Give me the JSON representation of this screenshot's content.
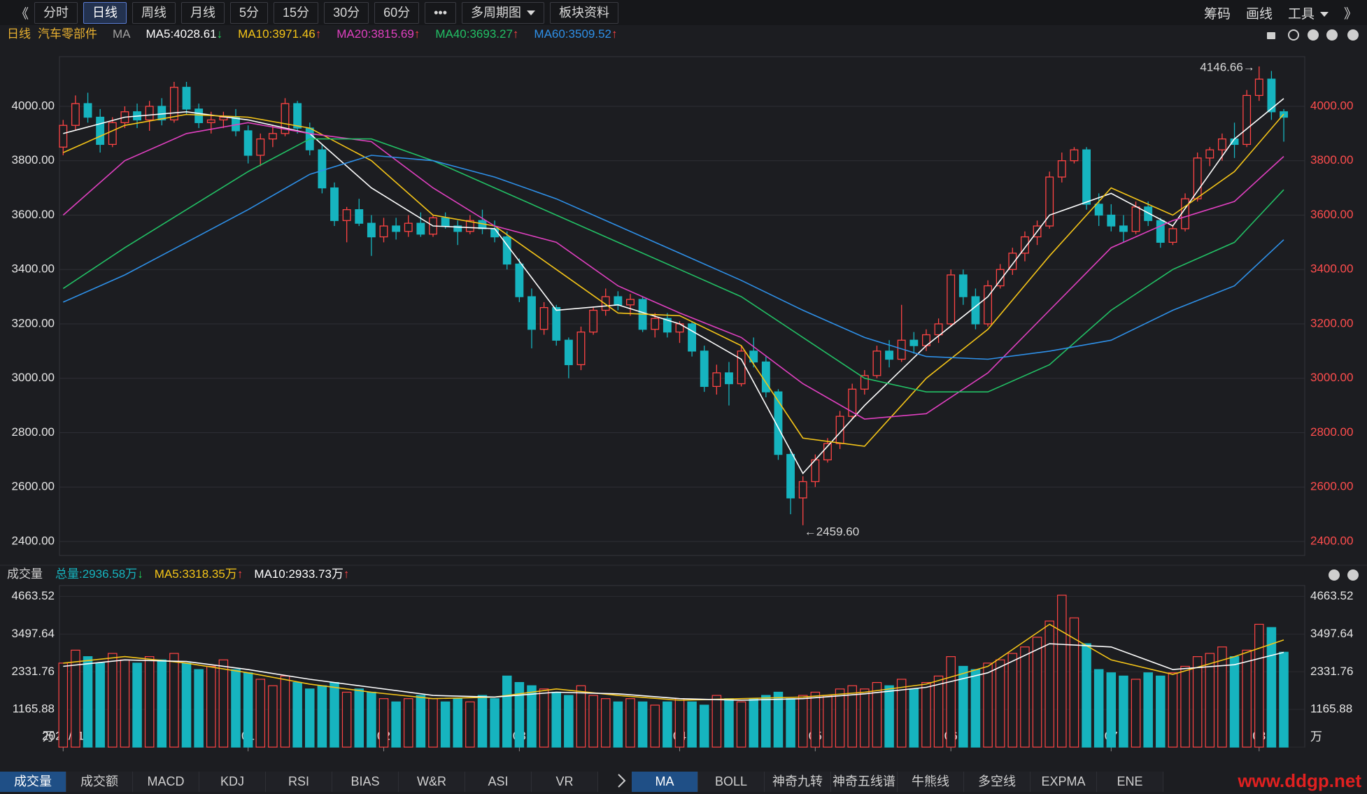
{
  "toolbar": {
    "left": [
      "《",
      "分时",
      "日线",
      "周线",
      "月线",
      "5分",
      "15分",
      "30分",
      "60分",
      "•••",
      {
        "text": "多周期图",
        "dropdown": true
      },
      "板块资料"
    ],
    "active": 2,
    "right": [
      "筹码",
      "画线",
      {
        "text": "工具",
        "dropdown": true
      },
      "》"
    ]
  },
  "header": {
    "period": "日线",
    "name": "汽车零部件",
    "indicator": "MA"
  },
  "chart_data": [
    {
      "type": "candlestick",
      "up_color": "#ff4444",
      "down_color": "#16b4bf",
      "grid": true,
      "ylim": [
        2348.5,
        4182.6
      ],
      "yticks": [
        {
          "value": 2400,
          "label": "2400.00"
        },
        {
          "value": 2600,
          "label": "2600.00"
        },
        {
          "value": 2800,
          "label": "2800.00"
        },
        {
          "value": 3000,
          "label": "3000.00"
        },
        {
          "value": 3200,
          "label": "3200.00"
        },
        {
          "value": 3400,
          "label": "3400.00"
        },
        {
          "value": 3600,
          "label": "3600.00"
        },
        {
          "value": 3800,
          "label": "3800.00"
        },
        {
          "value": 4000,
          "label": "4000.00"
        }
      ],
      "xlim": [
        -0.3,
        100.7
      ],
      "xticks": [
        {
          "value": 0,
          "label": "2021/11"
        },
        {
          "value": 15,
          "label": "01"
        },
        {
          "value": 26,
          "label": "02"
        },
        {
          "value": 37,
          "label": "03"
        },
        {
          "value": 50,
          "label": "04"
        },
        {
          "value": 61,
          "label": "05"
        },
        {
          "value": 72,
          "label": "06"
        },
        {
          "value": 85,
          "label": "07"
        },
        {
          "value": 97,
          "label": "08"
        }
      ],
      "candles": [
        [
          3850,
          3950,
          3820,
          3930
        ],
        [
          3930,
          4040,
          3910,
          4010
        ],
        [
          4010,
          4050,
          3940,
          3960
        ],
        [
          3960,
          3990,
          3830,
          3860
        ],
        [
          3860,
          3960,
          3850,
          3940
        ],
        [
          3940,
          4000,
          3920,
          3980
        ],
        [
          3980,
          4010,
          3920,
          3950
        ],
        [
          3950,
          4020,
          3910,
          4000
        ],
        [
          4000,
          4030,
          3930,
          3950
        ],
        [
          3950,
          4090,
          3940,
          4070
        ],
        [
          4070,
          4090,
          3970,
          3990
        ],
        [
          3990,
          4010,
          3920,
          3940
        ],
        [
          3940,
          3980,
          3900,
          3950
        ],
        [
          3950,
          3980,
          3920,
          3960
        ],
        [
          3960,
          3990,
          3890,
          3910
        ],
        [
          3910,
          3930,
          3790,
          3820
        ],
        [
          3820,
          3900,
          3780,
          3880
        ],
        [
          3880,
          3930,
          3850,
          3900
        ],
        [
          3900,
          4030,
          3890,
          4010
        ],
        [
          4010,
          4020,
          3900,
          3920
        ],
        [
          3920,
          3940,
          3820,
          3840
        ],
        [
          3840,
          3860,
          3680,
          3700
        ],
        [
          3700,
          3720,
          3560,
          3580
        ],
        [
          3580,
          3630,
          3500,
          3620
        ],
        [
          3620,
          3660,
          3560,
          3570
        ],
        [
          3570,
          3600,
          3450,
          3520
        ],
        [
          3520,
          3590,
          3500,
          3560
        ],
        [
          3560,
          3590,
          3510,
          3540
        ],
        [
          3540,
          3600,
          3520,
          3570
        ],
        [
          3570,
          3610,
          3520,
          3530
        ],
        [
          3530,
          3600,
          3520,
          3590
        ],
        [
          3590,
          3610,
          3550,
          3560
        ],
        [
          3560,
          3580,
          3490,
          3540
        ],
        [
          3540,
          3600,
          3530,
          3580
        ],
        [
          3580,
          3620,
          3530,
          3550
        ],
        [
          3550,
          3580,
          3500,
          3520
        ],
        [
          3520,
          3540,
          3400,
          3420
        ],
        [
          3420,
          3440,
          3280,
          3300
        ],
        [
          3300,
          3330,
          3110,
          3180
        ],
        [
          3180,
          3280,
          3160,
          3260
        ],
        [
          3260,
          3270,
          3120,
          3140
        ],
        [
          3140,
          3150,
          3000,
          3050
        ],
        [
          3050,
          3190,
          3030,
          3170
        ],
        [
          3170,
          3260,
          3160,
          3250
        ],
        [
          3250,
          3330,
          3230,
          3300
        ],
        [
          3300,
          3320,
          3250,
          3270
        ],
        [
          3270,
          3310,
          3230,
          3290
        ],
        [
          3290,
          3300,
          3170,
          3180
        ],
        [
          3180,
          3240,
          3150,
          3220
        ],
        [
          3220,
          3240,
          3150,
          3170
        ],
        [
          3170,
          3210,
          3130,
          3200
        ],
        [
          3200,
          3210,
          3080,
          3100
        ],
        [
          3100,
          3120,
          2950,
          2970
        ],
        [
          2970,
          3050,
          2940,
          3020
        ],
        [
          3020,
          3060,
          2900,
          2980
        ],
        [
          2980,
          3120,
          2970,
          3100
        ],
        [
          3100,
          3150,
          3040,
          3060
        ],
        [
          3060,
          3080,
          2930,
          2950
        ],
        [
          2950,
          2960,
          2700,
          2720
        ],
        [
          2720,
          2740,
          2500,
          2560
        ],
        [
          2560,
          2640,
          2459.6,
          2620
        ],
        [
          2620,
          2720,
          2600,
          2700
        ],
        [
          2700,
          2780,
          2690,
          2760
        ],
        [
          2760,
          2880,
          2740,
          2860
        ],
        [
          2860,
          2980,
          2850,
          2960
        ],
        [
          2960,
          3030,
          2940,
          3010
        ],
        [
          3010,
          3120,
          3000,
          3100
        ],
        [
          3100,
          3140,
          3040,
          3070
        ],
        [
          3070,
          3270,
          3060,
          3140
        ],
        [
          3140,
          3170,
          3090,
          3120
        ],
        [
          3120,
          3180,
          3100,
          3160
        ],
        [
          3160,
          3220,
          3130,
          3200
        ],
        [
          3200,
          3400,
          3190,
          3380
        ],
        [
          3380,
          3400,
          3270,
          3300
        ],
        [
          3300,
          3330,
          3180,
          3200
        ],
        [
          3200,
          3360,
          3190,
          3340
        ],
        [
          3340,
          3420,
          3330,
          3400
        ],
        [
          3400,
          3480,
          3380,
          3460
        ],
        [
          3460,
          3540,
          3430,
          3520
        ],
        [
          3520,
          3580,
          3490,
          3560
        ],
        [
          3560,
          3760,
          3550,
          3740
        ],
        [
          3740,
          3830,
          3720,
          3800
        ],
        [
          3800,
          3850,
          3790,
          3840
        ],
        [
          3840,
          3850,
          3620,
          3640
        ],
        [
          3640,
          3680,
          3560,
          3600
        ],
        [
          3600,
          3640,
          3540,
          3560
        ],
        [
          3560,
          3600,
          3500,
          3540
        ],
        [
          3540,
          3650,
          3530,
          3630
        ],
        [
          3630,
          3650,
          3560,
          3580
        ],
        [
          3580,
          3590,
          3480,
          3500
        ],
        [
          3500,
          3560,
          3490,
          3550
        ],
        [
          3550,
          3680,
          3540,
          3660
        ],
        [
          3660,
          3830,
          3650,
          3810
        ],
        [
          3810,
          3850,
          3780,
          3840
        ],
        [
          3840,
          3900,
          3800,
          3880
        ],
        [
          3880,
          3940,
          3810,
          3860
        ],
        [
          3860,
          4060,
          3850,
          4040
        ],
        [
          4040,
          4146.66,
          4020,
          4100
        ],
        [
          4100,
          4130,
          3950,
          3980
        ],
        [
          3980,
          3990,
          3870,
          3960
        ]
      ],
      "annotations": [
        {
          "label": "4146.66→",
          "value": 4146.66
        },
        {
          "label": "←2459.60",
          "value": 2459.6
        }
      ],
      "ma_x": [
        0,
        5,
        10,
        15,
        20,
        25,
        30,
        35,
        40,
        45,
        50,
        55,
        60,
        65,
        70,
        75,
        80,
        85,
        90,
        95,
        99
      ],
      "series": [
        {
          "label": "MA5:4028.61",
          "arrow": "↓",
          "arrow_color": "#1fd35a",
          "color": "#ffffff",
          "values": [
            3900,
            3960,
            3980,
            3950,
            3900,
            3700,
            3560,
            3550,
            3250,
            3270,
            3200,
            3070,
            2650,
            2900,
            3120,
            3300,
            3600,
            3680,
            3560,
            3880,
            4028.61
          ]
        },
        {
          "label": "MA10:3971.46",
          "arrow": "↑",
          "arrow_color": "#ff4444",
          "color": "#f5c518",
          "values": [
            3830,
            3930,
            3970,
            3960,
            3920,
            3800,
            3600,
            3560,
            3400,
            3240,
            3230,
            3120,
            2780,
            2750,
            3000,
            3180,
            3450,
            3700,
            3600,
            3760,
            3971.46
          ]
        },
        {
          "label": "MA20:3815.69",
          "arrow": "↑",
          "arrow_color": "#ff4444",
          "color": "#e040c0",
          "values": [
            3600,
            3800,
            3900,
            3940,
            3900,
            3870,
            3700,
            3560,
            3500,
            3340,
            3240,
            3150,
            2980,
            2850,
            2870,
            3020,
            3250,
            3480,
            3580,
            3650,
            3815.69
          ]
        },
        {
          "label": "MA40:3693.27",
          "arrow": "↑",
          "arrow_color": "#ff4444",
          "color": "#22c065",
          "values": [
            3330,
            3480,
            3620,
            3760,
            3880,
            3880,
            3800,
            3700,
            3600,
            3500,
            3400,
            3300,
            3150,
            3000,
            2950,
            2950,
            3050,
            3250,
            3400,
            3500,
            3693.27
          ]
        },
        {
          "label": "MA60:3509.52",
          "arrow": "↑",
          "arrow_color": "#ff4444",
          "color": "#2e90e8",
          "values": [
            3280,
            3380,
            3500,
            3620,
            3750,
            3820,
            3800,
            3740,
            3660,
            3560,
            3460,
            3360,
            3250,
            3150,
            3080,
            3070,
            3100,
            3140,
            3250,
            3340,
            3509.52
          ]
        }
      ]
    },
    {
      "type": "bar",
      "title": "成交量",
      "ylim": [
        0,
        5000
      ],
      "yticks": [
        {
          "value": 0,
          "label": "万"
        },
        1165.88,
        2331.76,
        3497.64,
        4663.52
      ],
      "legend": [
        {
          "label": "总量:2936.58万",
          "arrow": "↓",
          "arrow_color": "#1fd35a",
          "color": "#16b4bf"
        }
      ],
      "values": [
        2600,
        3000,
        2800,
        2600,
        2900,
        2700,
        2600,
        2800,
        2700,
        2900,
        2600,
        2400,
        2500,
        2700,
        2400,
        2300,
        2100,
        1900,
        2200,
        2000,
        1800,
        1900,
        2000,
        1700,
        1800,
        1700,
        1500,
        1400,
        1500,
        1600,
        1500,
        1400,
        1500,
        1400,
        1600,
        1500,
        2200,
        2000,
        1900,
        1800,
        1700,
        1600,
        1900,
        1600,
        1500,
        1400,
        1500,
        1400,
        1300,
        1400,
        1500,
        1400,
        1300,
        1600,
        1500,
        1400,
        1500,
        1600,
        1700,
        1500,
        1600,
        1700,
        1600,
        1800,
        1900,
        1800,
        2000,
        1900,
        2100,
        1800,
        2000,
        2200,
        2800,
        2500,
        2400,
        2600,
        2700,
        2900,
        3100,
        3400,
        3900,
        4700,
        4000,
        3200,
        2400,
        2300,
        2200,
        2100,
        2300,
        2200,
        2300,
        2500,
        2800,
        2900,
        3100,
        2800,
        3000,
        3800,
        3700,
        2936.58
      ],
      "ma_x": [
        0,
        5,
        10,
        15,
        20,
        25,
        30,
        35,
        40,
        45,
        50,
        55,
        60,
        65,
        70,
        75,
        80,
        85,
        90,
        95,
        99
      ],
      "series": [
        {
          "label": "MA5:3318.35万",
          "arrow": "↑",
          "arrow_color": "#ff4444",
          "color": "#f5c518",
          "values": [
            2600,
            2800,
            2600,
            2300,
            1950,
            1700,
            1500,
            1550,
            1800,
            1600,
            1450,
            1500,
            1550,
            1700,
            1950,
            2500,
            3800,
            2700,
            2250,
            2800,
            3318.35
          ]
        },
        {
          "label": "MA10:2933.73万",
          "arrow": "↑",
          "arrow_color": "#ff4444",
          "color": "#ffffff",
          "values": [
            2500,
            2700,
            2650,
            2400,
            2100,
            1850,
            1600,
            1550,
            1700,
            1650,
            1500,
            1450,
            1500,
            1650,
            1850,
            2300,
            3200,
            3100,
            2400,
            2550,
            2933.73
          ]
        }
      ]
    }
  ],
  "tabs": {
    "left": [
      "成交量",
      "成交额",
      "MACD",
      "KDJ",
      "RSI",
      "BIAS",
      "W&R",
      "ASI",
      "VR"
    ],
    "left_active": 0,
    "right": [
      "MA",
      "BOLL",
      "神奇九转",
      "神奇五线谱",
      "牛熊线",
      "多空线",
      "EXPMA",
      "ENE"
    ],
    "right_active": 0
  },
  "watermark": "www.ddgp.net"
}
